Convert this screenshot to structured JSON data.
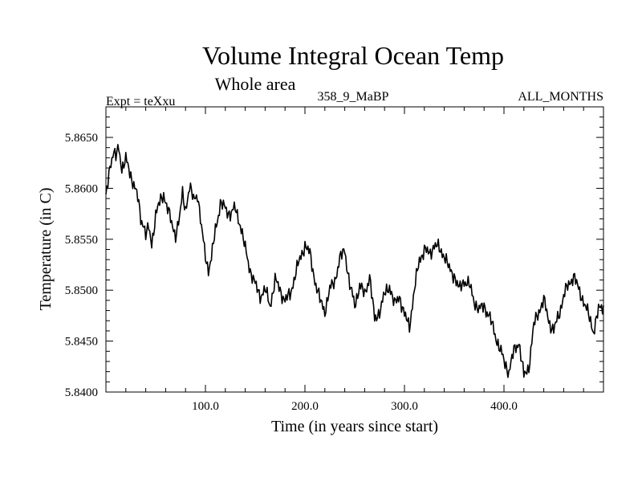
{
  "chart_data": {
    "type": "line",
    "title": "Volume Integral Ocean Temp",
    "subtitle": "Whole area",
    "left_label": "Expt = teXxu",
    "center_label": "358_9_MaBP",
    "right_label": "ALL_MONTHS",
    "xlabel": "Time (in years since start)",
    "ylabel": "Temperature (in C)",
    "xlim": [
      0,
      500
    ],
    "ylim": [
      5.84,
      5.868
    ],
    "x_ticks": [
      100,
      200,
      300,
      400
    ],
    "x_tick_labels": [
      "100.0",
      "200.0",
      "300.0",
      "400.0"
    ],
    "y_ticks": [
      5.84,
      5.845,
      5.85,
      5.855,
      5.86,
      5.865
    ],
    "y_tick_labels": [
      "5.8400",
      "5.8450",
      "5.8500",
      "5.8550",
      "5.8600",
      "5.8650"
    ],
    "grid": false,
    "line_color": "#000000",
    "series": [
      {
        "name": "Volume Integral Ocean Temp",
        "x": [
          0,
          3,
          5,
          8,
          10,
          13,
          16,
          20,
          24,
          28,
          32,
          35,
          38,
          40,
          43,
          46,
          50,
          54,
          58,
          62,
          66,
          70,
          74,
          77,
          80,
          84,
          88,
          92,
          96,
          100,
          103,
          106,
          110,
          115,
          120,
          125,
          130,
          135,
          140,
          145,
          150,
          155,
          160,
          165,
          170,
          175,
          180,
          185,
          190,
          195,
          200,
          205,
          210,
          215,
          220,
          225,
          230,
          235,
          240,
          245,
          250,
          255,
          260,
          265,
          270,
          275,
          280,
          285,
          290,
          295,
          300,
          305,
          310,
          315,
          320,
          325,
          330,
          335,
          340,
          345,
          350,
          355,
          360,
          365,
          370,
          375,
          380,
          385,
          390,
          395,
          400,
          405,
          410,
          415,
          420,
          425,
          430,
          435,
          440,
          445,
          450,
          455,
          460,
          465,
          470,
          475,
          480,
          485,
          490,
          495,
          500
        ],
        "values": [
          5.859,
          5.8615,
          5.8628,
          5.8635,
          5.863,
          5.864,
          5.862,
          5.8628,
          5.8615,
          5.8605,
          5.859,
          5.857,
          5.8565,
          5.8555,
          5.856,
          5.8545,
          5.8575,
          5.8585,
          5.8595,
          5.858,
          5.8565,
          5.8555,
          5.857,
          5.8595,
          5.858,
          5.86,
          5.859,
          5.8595,
          5.856,
          5.8535,
          5.852,
          5.853,
          5.856,
          5.8585,
          5.858,
          5.8575,
          5.858,
          5.8565,
          5.854,
          5.852,
          5.8505,
          5.8495,
          5.85,
          5.8485,
          5.851,
          5.85,
          5.849,
          5.8495,
          5.8515,
          5.853,
          5.8545,
          5.8535,
          5.851,
          5.849,
          5.848,
          5.85,
          5.851,
          5.853,
          5.854,
          5.8505,
          5.8485,
          5.8505,
          5.8495,
          5.8515,
          5.847,
          5.848,
          5.8495,
          5.8505,
          5.8485,
          5.8495,
          5.8475,
          5.8465,
          5.85,
          5.853,
          5.854,
          5.8535,
          5.8545,
          5.854,
          5.8535,
          5.852,
          5.8515,
          5.85,
          5.851,
          5.8505,
          5.849,
          5.848,
          5.8485,
          5.8475,
          5.846,
          5.8445,
          5.843,
          5.842,
          5.844,
          5.845,
          5.8415,
          5.8425,
          5.8465,
          5.848,
          5.849,
          5.847,
          5.846,
          5.8475,
          5.8495,
          5.8505,
          5.8515,
          5.85,
          5.849,
          5.8475,
          5.846,
          5.848,
          5.8485
        ]
      }
    ]
  }
}
